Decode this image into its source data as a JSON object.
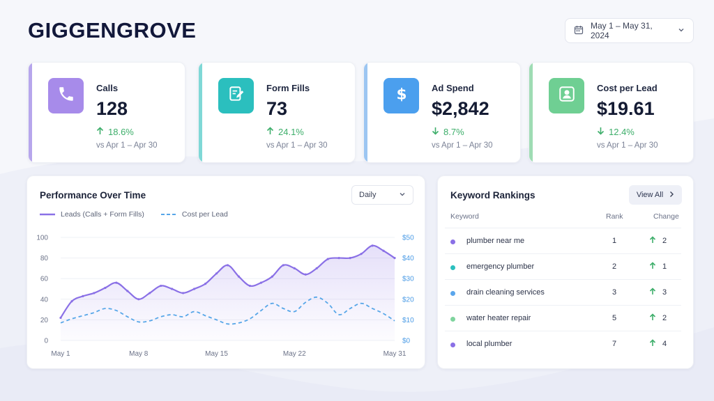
{
  "brand": {
    "name": "GIGGENGROVE"
  },
  "date_range": {
    "label": "May 1 – May 31, 2024"
  },
  "kpis": [
    {
      "label": "Calls",
      "value": "128",
      "change": "18.6%",
      "direction": "up",
      "comparison": "vs Apr 1 – Apr 30",
      "icon": "phone-icon",
      "accent": "#b7a6ec",
      "tile": "#a78bea"
    },
    {
      "label": "Form Fills",
      "value": "73",
      "change": "24.1%",
      "direction": "up",
      "comparison": "vs Apr 1 – Apr 30",
      "icon": "form-edit-icon",
      "accent": "#7fd8d6",
      "tile": "#2bbfbe"
    },
    {
      "label": "Ad Spend",
      "value": "$2,842",
      "change": "8.7%",
      "direction": "down",
      "comparison": "vs Apr 1 – Apr 30",
      "icon": "dollar-icon",
      "accent": "#9cc6f2",
      "tile": "#4b9fee"
    },
    {
      "label": "Cost per Lead",
      "value": "$19.61",
      "change": "12.4%",
      "direction": "down",
      "comparison": "vs Apr 1 – Apr 30",
      "icon": "user-icon",
      "accent": "#9fdcb4",
      "tile": "#6fcf93"
    }
  ],
  "performance": {
    "title": "Performance Over Time",
    "granularity": "Daily",
    "legend": {
      "leads": "Leads (Calls + Form Fills)",
      "cost": "Cost per Lead"
    }
  },
  "chart_data": {
    "type": "line",
    "x": [
      1,
      2,
      3,
      4,
      5,
      6,
      7,
      8,
      9,
      10,
      11,
      12,
      13,
      14,
      15,
      16,
      17,
      18,
      19,
      20,
      21,
      22,
      23,
      24,
      25,
      26,
      27,
      28,
      29,
      30,
      31
    ],
    "x_ticks": [
      "May 1",
      "May 8",
      "May 15",
      "May 22",
      "May 31"
    ],
    "x_tick_positions": [
      1,
      8,
      15,
      22,
      31
    ],
    "y_left_ticks": [
      "0",
      "20",
      "40",
      "60",
      "80",
      "100"
    ],
    "y_right_ticks": [
      "$0",
      "$10",
      "$20",
      "$30",
      "$40",
      "$50"
    ],
    "ylim_left": [
      0,
      100
    ],
    "ylim_right": [
      0,
      50
    ],
    "series": [
      {
        "name": "Leads (Calls + Form Fills)",
        "axis": "left",
        "color": "#8a70e6",
        "style": "solid",
        "values": [
          22,
          38,
          43,
          46,
          51,
          56,
          48,
          40,
          46,
          53,
          50,
          46,
          50,
          55,
          65,
          73,
          62,
          53,
          56,
          62,
          73,
          70,
          64,
          70,
          79,
          80,
          80,
          84,
          92,
          87,
          80
        ]
      },
      {
        "name": "Cost per Lead",
        "axis": "right",
        "color": "#56a6e8",
        "style": "dashed",
        "values": [
          8.5,
          10.5,
          12,
          13.5,
          15.5,
          14.5,
          11.5,
          9,
          9.5,
          11.5,
          12.5,
          11.5,
          14,
          12,
          10,
          8,
          8.5,
          10.5,
          14.5,
          18,
          15.5,
          14,
          18.5,
          21,
          18,
          12.5,
          15.5,
          18,
          15.5,
          13,
          9.5
        ]
      }
    ]
  },
  "keywords": {
    "title": "Keyword Rankings",
    "view_all": "View All",
    "columns": {
      "keyword": "Keyword",
      "rank": "Rank",
      "change": "Change"
    },
    "rows": [
      {
        "keyword": "plumber near me",
        "rank": "1",
        "change": "2",
        "color": "#8a70e6"
      },
      {
        "keyword": "emergency plumber",
        "rank": "2",
        "change": "1",
        "color": "#2bbfbe"
      },
      {
        "keyword": "drain cleaning services",
        "rank": "3",
        "change": "3",
        "color": "#5aa6ec"
      },
      {
        "keyword": "water heater repair",
        "rank": "5",
        "change": "2",
        "color": "#7fd49e"
      },
      {
        "keyword": "local plumber",
        "rank": "7",
        "change": "4",
        "color": "#8a70e6"
      }
    ]
  }
}
